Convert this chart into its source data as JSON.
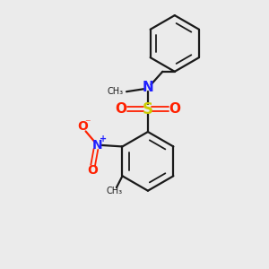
{
  "background_color": "#ebebeb",
  "bond_color": "#1a1a1a",
  "N_color": "#2020ff",
  "S_color": "#cccc00",
  "O_color": "#ff2000",
  "figsize": [
    3.0,
    3.0
  ],
  "dpi": 100,
  "xlim": [
    0,
    10
  ],
  "ylim": [
    0,
    10
  ],
  "lw": 1.6,
  "lw_thin": 1.3
}
